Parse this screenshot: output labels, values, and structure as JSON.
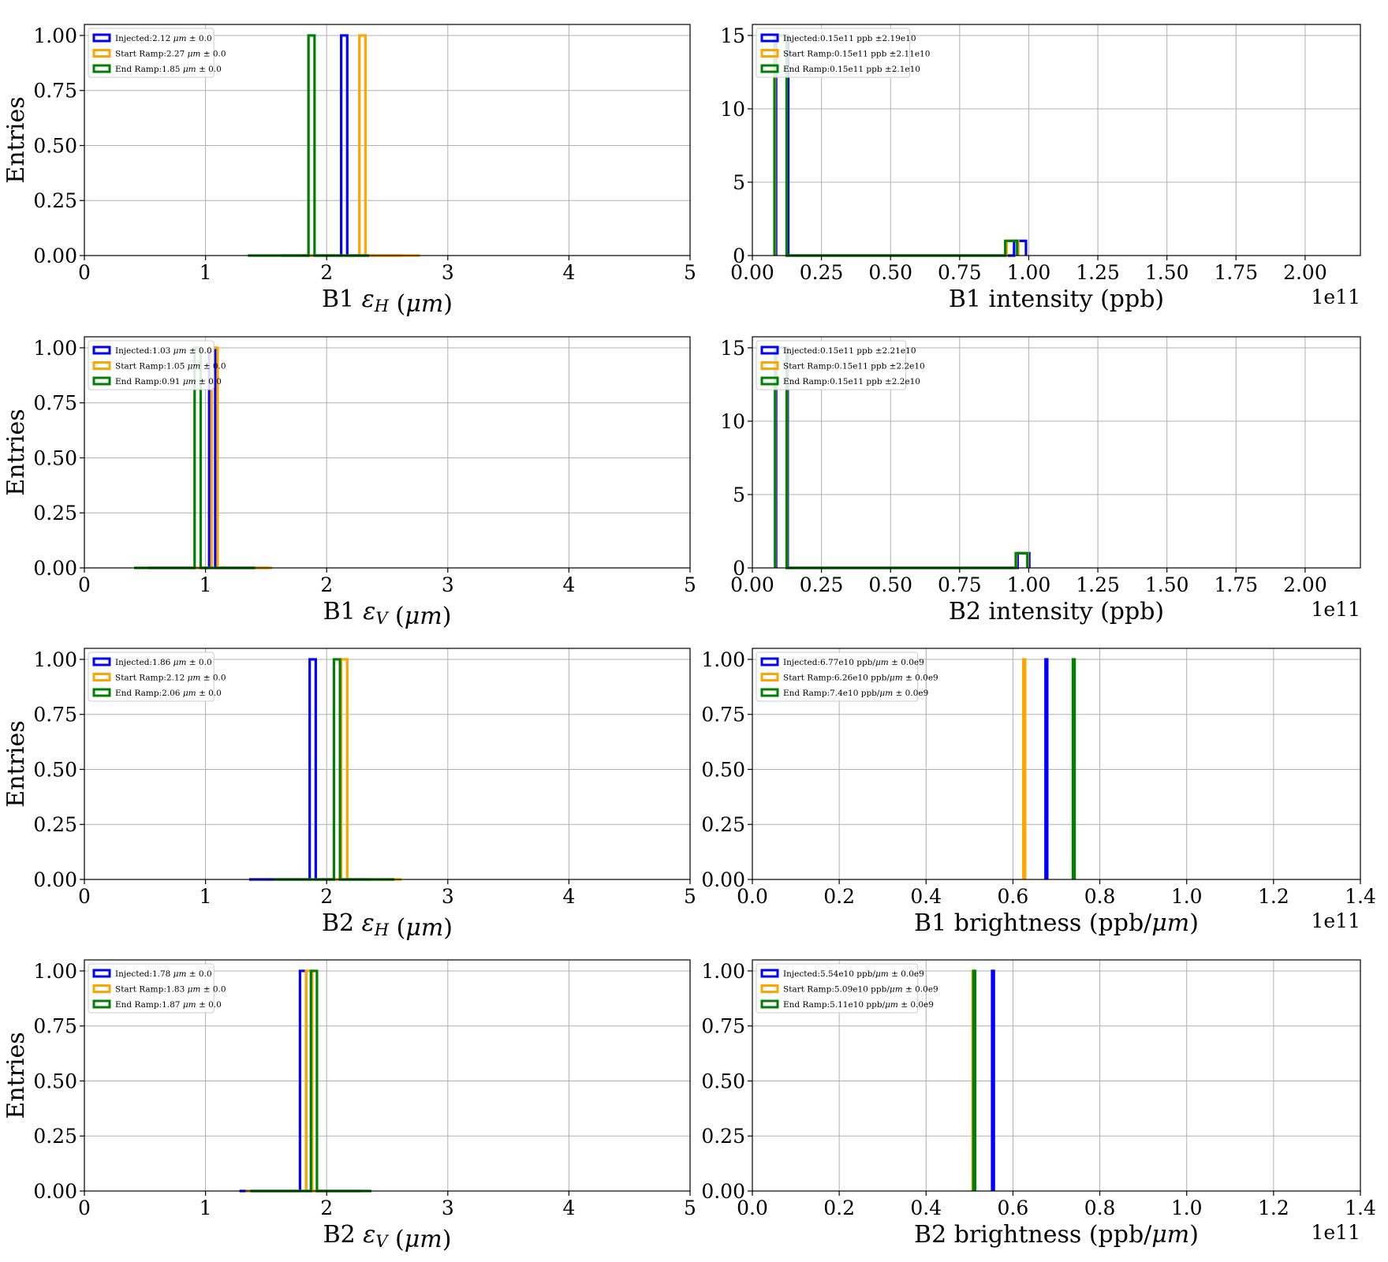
{
  "colors": {
    "injected": "#0000ff",
    "start_ramp": "#ffa500",
    "end_ramp": "#008000",
    "grid": "#b0b0b0"
  },
  "chart_data": [
    {
      "id": "b1-eh",
      "type": "histogram",
      "xlabel": "B1 ε_H (μm)",
      "ylabel": "Entries",
      "xlim": [
        0,
        5
      ],
      "ylim": [
        0,
        1.05
      ],
      "xticks": [
        "0",
        "1",
        "2",
        "3",
        "4",
        "5"
      ],
      "yticks": [
        "0.00",
        "0.25",
        "0.50",
        "0.75",
        "1.00"
      ],
      "offset_text": "",
      "grid": true,
      "legend_position": "top-left",
      "series": [
        {
          "name": "Injected:2.12 μm ± 0.0",
          "color_key": "injected",
          "range": [
            1.62,
            2.62
          ],
          "bins": 20,
          "peak_value": 2.12,
          "peak_count": 1
        },
        {
          "name": "Start Ramp:2.27 μm ± 0.0",
          "color_key": "start_ramp",
          "range": [
            1.77,
            2.77
          ],
          "bins": 20,
          "peak_value": 2.27,
          "peak_count": 1
        },
        {
          "name": "End Ramp:1.85 μm ± 0.0",
          "color_key": "end_ramp",
          "range": [
            1.35,
            2.35
          ],
          "bins": 20,
          "peak_value": 1.85,
          "peak_count": 1
        }
      ]
    },
    {
      "id": "b1-int",
      "type": "histogram",
      "xlabel": "B1 intensity (ppb)",
      "ylabel": "",
      "xlim": [
        0,
        2.2
      ],
      "ylim": [
        0,
        15.75
      ],
      "xticks": [
        "0.00",
        "0.25",
        "0.50",
        "0.75",
        "1.00",
        "1.25",
        "1.50",
        "1.75",
        "2.00"
      ],
      "xtick_values": [
        0,
        0.25,
        0.5,
        0.75,
        1.0,
        1.25,
        1.5,
        1.75,
        2.0
      ],
      "yticks": [
        "0",
        "5",
        "10",
        "15"
      ],
      "ytick_values": [
        0,
        5,
        10,
        15
      ],
      "offset_text": "1e11",
      "grid": true,
      "legend_position": "top-left",
      "series": [
        {
          "name": "Injected:0.15e11 ppb ±2.19e10",
          "color_key": "injected",
          "bars": [
            [
              0.086,
              0.13,
              15
            ],
            [
              0.13,
              0.947,
              0
            ],
            [
              0.947,
              0.99,
              1
            ]
          ]
        },
        {
          "name": "Start Ramp:0.15e11 ppb ±2.11e10",
          "color_key": "start_ramp",
          "bars": [
            [
              0.082,
              0.124,
              15
            ],
            [
              0.124,
              0.92,
              0
            ],
            [
              0.92,
              0.962,
              1
            ]
          ]
        },
        {
          "name": "End Ramp:0.15e11 ppb ±2.1e10",
          "color_key": "end_ramp",
          "bars": [
            [
              0.08,
              0.124,
              15
            ],
            [
              0.124,
              0.915,
              0
            ],
            [
              0.915,
              0.958,
              1
            ]
          ]
        }
      ]
    },
    {
      "id": "b1-ev",
      "type": "histogram",
      "xlabel": "B1 ε_V (μm)",
      "ylabel": "Entries",
      "xlim": [
        0,
        5
      ],
      "ylim": [
        0,
        1.05
      ],
      "xticks": [
        "0",
        "1",
        "2",
        "3",
        "4",
        "5"
      ],
      "yticks": [
        "0.00",
        "0.25",
        "0.50",
        "0.75",
        "1.00"
      ],
      "offset_text": "",
      "grid": true,
      "legend_position": "top-left",
      "series": [
        {
          "name": "Injected:1.03 μm ± 0.0",
          "color_key": "injected",
          "range": [
            0.53,
            1.53
          ],
          "bins": 20,
          "peak_value": 1.03,
          "peak_count": 1
        },
        {
          "name": "Start Ramp:1.05 μm ± 0.0",
          "color_key": "start_ramp",
          "range": [
            0.55,
            1.55
          ],
          "bins": 20,
          "peak_value": 1.05,
          "peak_count": 1
        },
        {
          "name": "End Ramp:0.91 μm ± 0.0",
          "color_key": "end_ramp",
          "range": [
            0.41,
            1.41
          ],
          "bins": 20,
          "peak_value": 0.91,
          "peak_count": 1
        }
      ]
    },
    {
      "id": "b2-int",
      "type": "histogram",
      "xlabel": "B2 intensity (ppb)",
      "ylabel": "",
      "xlim": [
        0,
        2.2
      ],
      "ylim": [
        0,
        15.75
      ],
      "xticks": [
        "0.00",
        "0.25",
        "0.50",
        "0.75",
        "1.00",
        "1.25",
        "1.50",
        "1.75",
        "2.00"
      ],
      "xtick_values": [
        0,
        0.25,
        0.5,
        0.75,
        1.0,
        1.25,
        1.5,
        1.75,
        2.0
      ],
      "yticks": [
        "0",
        "5",
        "10",
        "15"
      ],
      "ytick_values": [
        0,
        5,
        10,
        15
      ],
      "offset_text": "1e11",
      "grid": true,
      "legend_position": "top-left",
      "series": [
        {
          "name": "Injected:0.15e11 ppb ±2.21e10",
          "color_key": "injected",
          "bars": [
            [
              0.086,
              0.128,
              15
            ],
            [
              0.128,
              0.96,
              0
            ],
            [
              0.96,
              1.002,
              1
            ]
          ]
        },
        {
          "name": "Start Ramp:0.15e11 ppb ±2.2e10",
          "color_key": "start_ramp",
          "bars": [
            [
              0.083,
              0.125,
              15
            ],
            [
              0.125,
              0.955,
              0
            ],
            [
              0.955,
              0.997,
              1
            ]
          ]
        },
        {
          "name": "End Ramp:0.15e11 ppb ±2.2e10",
          "color_key": "end_ramp",
          "bars": [
            [
              0.082,
              0.124,
              15
            ],
            [
              0.124,
              0.953,
              0
            ],
            [
              0.953,
              0.995,
              1
            ]
          ]
        }
      ]
    },
    {
      "id": "b2-eh",
      "type": "histogram",
      "xlabel": "B2 ε_H (μm)",
      "ylabel": "Entries",
      "xlim": [
        0,
        5
      ],
      "ylim": [
        0,
        1.05
      ],
      "xticks": [
        "0",
        "1",
        "2",
        "3",
        "4",
        "5"
      ],
      "yticks": [
        "0.00",
        "0.25",
        "0.50",
        "0.75",
        "1.00"
      ],
      "offset_text": "",
      "grid": true,
      "legend_position": "top-left",
      "series": [
        {
          "name": "Injected:1.86 μm ± 0.0",
          "color_key": "injected",
          "range": [
            1.36,
            2.36
          ],
          "bins": 20,
          "peak_value": 1.86,
          "peak_count": 1
        },
        {
          "name": "Start Ramp:2.12 μm ± 0.0",
          "color_key": "start_ramp",
          "range": [
            1.62,
            2.62
          ],
          "bins": 20,
          "peak_value": 2.12,
          "peak_count": 1
        },
        {
          "name": "End Ramp:2.06 μm ± 0.0",
          "color_key": "end_ramp",
          "range": [
            1.56,
            2.56
          ],
          "bins": 20,
          "peak_value": 2.06,
          "peak_count": 1
        }
      ]
    },
    {
      "id": "b1-bright",
      "type": "histogram",
      "xlabel": "B1 brightness (ppb/μm)",
      "ylabel": "",
      "xlim": [
        0,
        1.4
      ],
      "ylim": [
        0,
        1.05
      ],
      "xticks": [
        "0.0",
        "0.2",
        "0.4",
        "0.6",
        "0.8",
        "1.0",
        "1.2",
        "1.4"
      ],
      "xtick_values": [
        0,
        0.2,
        0.4,
        0.6,
        0.8,
        1.0,
        1.2,
        1.4
      ],
      "yticks": [
        "0.00",
        "0.25",
        "0.50",
        "0.75",
        "1.00"
      ],
      "offset_text": "1e11",
      "grid": true,
      "legend_position": "top-left",
      "series": [
        {
          "name": "Injected:6.77e10 ppb/μm ± 0.0e9",
          "color_key": "injected",
          "peak_value": 0.677,
          "peak_count": 1
        },
        {
          "name": "Start Ramp:6.26e10 ppb/μm ± 0.0e9",
          "color_key": "start_ramp",
          "peak_value": 0.626,
          "peak_count": 1
        },
        {
          "name": "End Ramp:7.4e10 ppb/μm ± 0.0e9",
          "color_key": "end_ramp",
          "peak_value": 0.74,
          "peak_count": 1
        }
      ]
    },
    {
      "id": "b2-ev",
      "type": "histogram",
      "xlabel": "B2 ε_V (μm)",
      "ylabel": "Entries",
      "xlim": [
        0,
        5
      ],
      "ylim": [
        0,
        1.05
      ],
      "xticks": [
        "0",
        "1",
        "2",
        "3",
        "4",
        "5"
      ],
      "yticks": [
        "0.00",
        "0.25",
        "0.50",
        "0.75",
        "1.00"
      ],
      "offset_text": "",
      "grid": true,
      "legend_position": "top-left",
      "series": [
        {
          "name": "Injected:1.78 μm ± 0.0",
          "color_key": "injected",
          "range": [
            1.28,
            2.28
          ],
          "bins": 20,
          "peak_value": 1.78,
          "peak_count": 1
        },
        {
          "name": "Start Ramp:1.83 μm ± 0.0",
          "color_key": "start_ramp",
          "range": [
            1.33,
            2.33
          ],
          "bins": 20,
          "peak_value": 1.83,
          "peak_count": 1
        },
        {
          "name": "End Ramp:1.87 μm ± 0.0",
          "color_key": "end_ramp",
          "range": [
            1.37,
            2.37
          ],
          "bins": 20,
          "peak_value": 1.87,
          "peak_count": 1
        }
      ]
    },
    {
      "id": "b2-bright",
      "type": "histogram",
      "xlabel": "B2 brightness (ppb/μm)",
      "ylabel": "",
      "xlim": [
        0,
        1.4
      ],
      "ylim": [
        0,
        1.05
      ],
      "xticks": [
        "0.0",
        "0.2",
        "0.4",
        "0.6",
        "0.8",
        "1.0",
        "1.2",
        "1.4"
      ],
      "xtick_values": [
        0,
        0.2,
        0.4,
        0.6,
        0.8,
        1.0,
        1.2,
        1.4
      ],
      "yticks": [
        "0.00",
        "0.25",
        "0.50",
        "0.75",
        "1.00"
      ],
      "offset_text": "1e11",
      "grid": true,
      "legend_position": "top-left",
      "series": [
        {
          "name": "Injected:5.54e10 ppb/μm ± 0.0e9",
          "color_key": "injected",
          "peak_value": 0.554,
          "peak_count": 1
        },
        {
          "name": "Start Ramp:5.09e10 ppb/μm ± 0.0e9",
          "color_key": "start_ramp",
          "peak_value": 0.509,
          "peak_count": 1
        },
        {
          "name": "End Ramp:5.11e10 ppb/μm ± 0.0e9",
          "color_key": "end_ramp",
          "peak_value": 0.511,
          "peak_count": 1
        }
      ]
    }
  ]
}
